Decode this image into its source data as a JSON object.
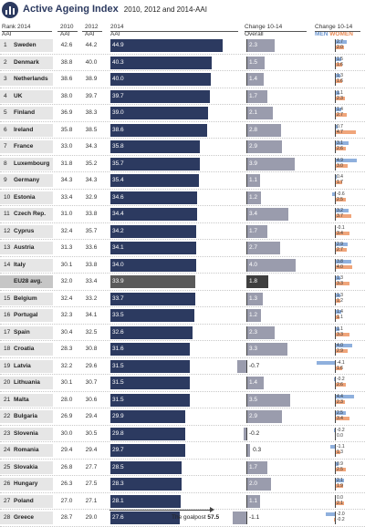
{
  "title": "Active Ageing Index",
  "subtitle": "2010, 2012 and 2014-AAI",
  "headers": {
    "rank_line1": "Rank 2014",
    "rank_line2": "AAI",
    "y2010_line1": "2010",
    "y2010_line2": "AAI",
    "y2012_line1": "2012",
    "y2012_line2": "AAI",
    "y2014_line1": "2014",
    "y2014_line2": "AAI",
    "change_line1": "Change 10-14",
    "change_line2": "Overall",
    "gender_line1": "Change 10-14",
    "men": "MEN",
    "women": "WOMEN"
  },
  "colors": {
    "bar_2014": "#2c3a60",
    "bar_change": "#9a9cad",
    "men": "#8fb0dd",
    "women": "#f0a57a",
    "eu_bar_2014": "#5a5a5a",
    "eu_bar_change": "#3e3e3e"
  },
  "goalpost": {
    "label": "The goalpost",
    "value": "57.5"
  },
  "chart_data": {
    "type": "table",
    "columns": [
      "Rank 2014",
      "Country",
      "2010 AAI",
      "2012 AAI",
      "2014 AAI",
      "Change 10-14 Overall",
      "Change 10-14 Men",
      "Change 10-14 Women"
    ],
    "rows": [
      {
        "rank": "1",
        "country": "Sweden",
        "aai2010": "42.6",
        "aai2012": "44.2",
        "aai2014": "44.9",
        "change": "2.3",
        "men": "2.7",
        "women": "2.0"
      },
      {
        "rank": "2",
        "country": "Denmark",
        "aai2010": "38.8",
        "aai2012": "40.0",
        "aai2014": "40.3",
        "change": "1.5",
        "men": "1.5",
        "women": "1.6"
      },
      {
        "rank": "3",
        "country": "Netherlands",
        "aai2010": "38.6",
        "aai2012": "38.9",
        "aai2014": "40.0",
        "change": "1.4",
        "men": "1.3",
        "women": "1.6"
      },
      {
        "rank": "4",
        "country": "UK",
        "aai2010": "38.0",
        "aai2012": "39.7",
        "aai2014": "39.7",
        "change": "1.7",
        "men": "1.1",
        "women": "2.3"
      },
      {
        "rank": "5",
        "country": "Finland",
        "aai2010": "36.9",
        "aai2012": "38.3",
        "aai2014": "39.0",
        "change": "2.1",
        "men": "1.4",
        "women": "2.7"
      },
      {
        "rank": "6",
        "country": "Ireland",
        "aai2010": "35.8",
        "aai2012": "38.5",
        "aai2014": "38.6",
        "change": "2.8",
        "men": "0.7",
        "women": "4.7"
      },
      {
        "rank": "7",
        "country": "France",
        "aai2010": "33.0",
        "aai2012": "34.3",
        "aai2014": "35.8",
        "change": "2.9",
        "men": "3.1",
        "women": "2.6"
      },
      {
        "rank": "8",
        "country": "Luxembourg",
        "aai2010": "31.8",
        "aai2012": "35.2",
        "aai2014": "35.7",
        "change": "3.9",
        "men": "4.9",
        "women": "3.0"
      },
      {
        "rank": "9",
        "country": "Germany",
        "aai2010": "34.3",
        "aai2012": "34.3",
        "aai2014": "35.4",
        "change": "1.1",
        "men": "0.4",
        "women": "1.7"
      },
      {
        "rank": "10",
        "country": "Estonia",
        "aai2010": "33.4",
        "aai2012": "32.9",
        "aai2014": "34.6",
        "change": "1.2",
        "men": "-0.6",
        "women": "2.5"
      },
      {
        "rank": "11",
        "country": "Czech Rep.",
        "aai2010": "31.0",
        "aai2012": "33.8",
        "aai2014": "34.4",
        "change": "3.4",
        "men": "3.2",
        "women": "3.7"
      },
      {
        "rank": "12",
        "country": "Cyprus",
        "aai2010": "32.4",
        "aai2012": "35.7",
        "aai2014": "34.2",
        "change": "1.7",
        "men": "-0.1",
        "women": "3.4"
      },
      {
        "rank": "13",
        "country": "Austria",
        "aai2010": "31.3",
        "aai2012": "33.6",
        "aai2014": "34.1",
        "change": "2.7",
        "men": "2.9",
        "women": "2.7"
      },
      {
        "rank": "14",
        "country": "Italy",
        "aai2010": "30.1",
        "aai2012": "33.8",
        "aai2014": "34.0",
        "change": "4.0",
        "men": "3.8",
        "women": "4.0"
      },
      {
        "rank": "",
        "country": "EU28 avg.",
        "aai2010": "32.0",
        "aai2012": "33.4",
        "aai2014": "33.9",
        "change": "1.8",
        "men": "1.3",
        "women": "3.3",
        "eu": true
      },
      {
        "rank": "15",
        "country": "Belgium",
        "aai2010": "32.4",
        "aai2012": "33.2",
        "aai2014": "33.7",
        "change": "1.3",
        "men": "1.3",
        "women": "1.2"
      },
      {
        "rank": "16",
        "country": "Portugal",
        "aai2010": "32.3",
        "aai2012": "34.1",
        "aai2014": "33.5",
        "change": "1.2",
        "men": "1.4",
        "women": "1.1"
      },
      {
        "rank": "17",
        "country": "Spain",
        "aai2010": "30.4",
        "aai2012": "32.5",
        "aai2014": "32.6",
        "change": "2.3",
        "men": "1.1",
        "women": "3.3"
      },
      {
        "rank": "18",
        "country": "Croatia",
        "aai2010": "28.3",
        "aai2012": "30.8",
        "aai2014": "31.6",
        "change": "3.3",
        "men": "4.0",
        "women": "2.9"
      },
      {
        "rank": "19",
        "country": "Latvia",
        "aai2010": "32.2",
        "aai2012": "29.6",
        "aai2014": "31.5",
        "change": "-0.7",
        "men": "-4.1",
        "women": "1.6"
      },
      {
        "rank": "20",
        "country": "Lithuania",
        "aai2010": "30.1",
        "aai2012": "30.7",
        "aai2014": "31.5",
        "change": "1.4",
        "men": "-0.2",
        "women": "2.6"
      },
      {
        "rank": "21",
        "country": "Malta",
        "aai2010": "28.0",
        "aai2012": "30.6",
        "aai2014": "31.5",
        "change": "3.5",
        "men": "4.4",
        "women": "2.3"
      },
      {
        "rank": "22",
        "country": "Bulgaria",
        "aai2010": "26.9",
        "aai2012": "29.4",
        "aai2014": "29.9",
        "change": "2.9",
        "men": "2.5",
        "women": "3.4"
      },
      {
        "rank": "23",
        "country": "Slovenia",
        "aai2010": "30.0",
        "aai2012": "30.5",
        "aai2014": "29.8",
        "change": "-0.2",
        "men": "-0.2",
        "women": "0.0"
      },
      {
        "rank": "24",
        "country": "Romania",
        "aai2010": "29.4",
        "aai2012": "29.4",
        "aai2014": "29.7",
        "change": "0.3",
        "men": "-1.1",
        "women": "1.3"
      },
      {
        "rank": "25",
        "country": "Slovakia",
        "aai2010": "26.8",
        "aai2012": "27.7",
        "aai2014": "28.5",
        "change": "1.7",
        "men": "0.9",
        "women": "2.5"
      },
      {
        "rank": "26",
        "country": "Hungary",
        "aai2010": "26.3",
        "aai2012": "27.5",
        "aai2014": "28.3",
        "change": "2.0",
        "men": "2.1",
        "women": "1.9"
      },
      {
        "rank": "27",
        "country": "Poland",
        "aai2010": "27.0",
        "aai2012": "27.1",
        "aai2014": "28.1",
        "change": "1.1",
        "men": "0.0",
        "women": "2.1"
      },
      {
        "rank": "28",
        "country": "Greece",
        "aai2010": "28.7",
        "aai2012": "29.0",
        "aai2014": "27.6",
        "change": "-1.1",
        "men": "-2.0",
        "women": "-0.2"
      }
    ]
  }
}
